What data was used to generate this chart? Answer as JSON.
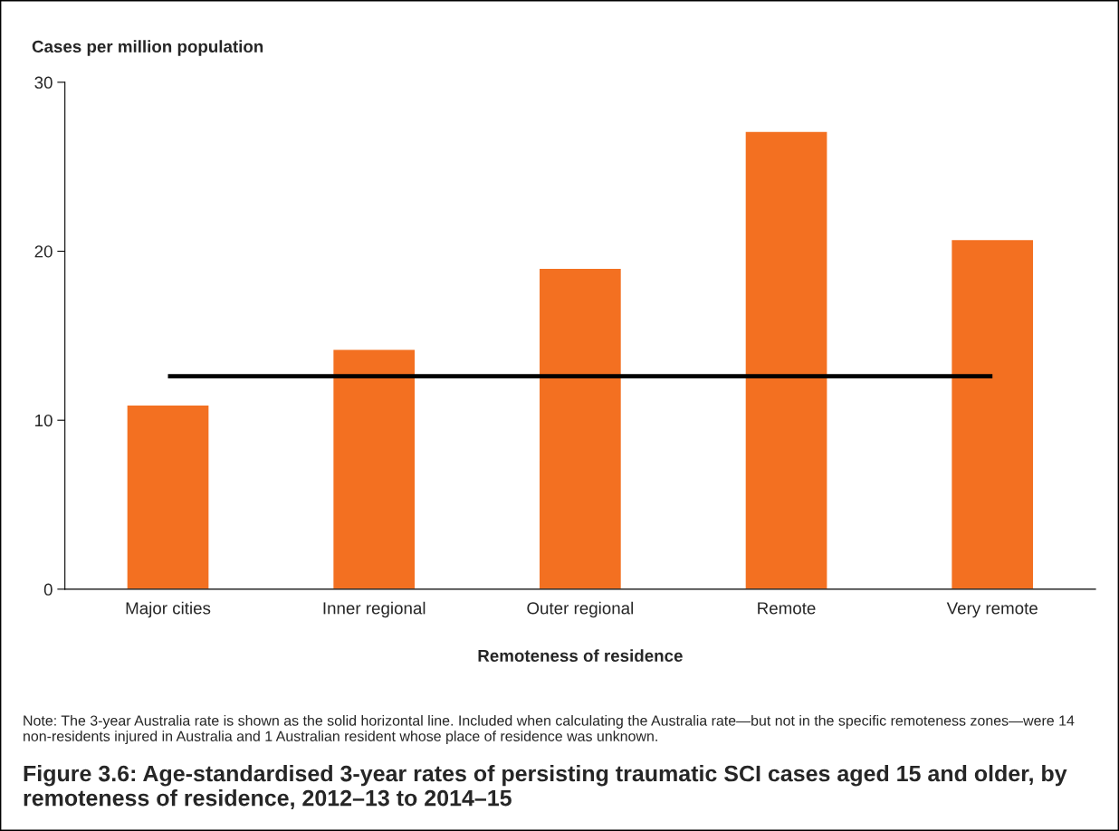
{
  "chart_data": {
    "type": "bar",
    "title": "Figure 3.6: Age-standardised 3-year rates of persisting traumatic SCI cases aged 15 and older, by remoteness of residence, 2012–13 to 2014–15",
    "ylabel": "Cases per million population",
    "xlabel": "Remoteness of residence",
    "categories": [
      "Major cities",
      "Inner regional",
      "Outer regional",
      "Remote",
      "Very remote"
    ],
    "values": [
      10.9,
      14.2,
      19.0,
      27.1,
      20.7
    ],
    "color": "#f37021",
    "ylim": [
      0,
      30
    ],
    "yticks": [
      0,
      10,
      20,
      30
    ],
    "grid": false,
    "legend": false,
    "ref_lines": [
      {
        "axis": "y",
        "value": 12.6,
        "color": "#000000",
        "line_style": "solid"
      }
    ],
    "annotations": [
      "Note: The 3-year Australia rate is shown as the solid horizontal line. Included when calculating the Australia rate—but not in the specific remoteness zones—were 14 non-residents injured in Australia and 1 Australian resident whose place of residence was unknown."
    ]
  }
}
